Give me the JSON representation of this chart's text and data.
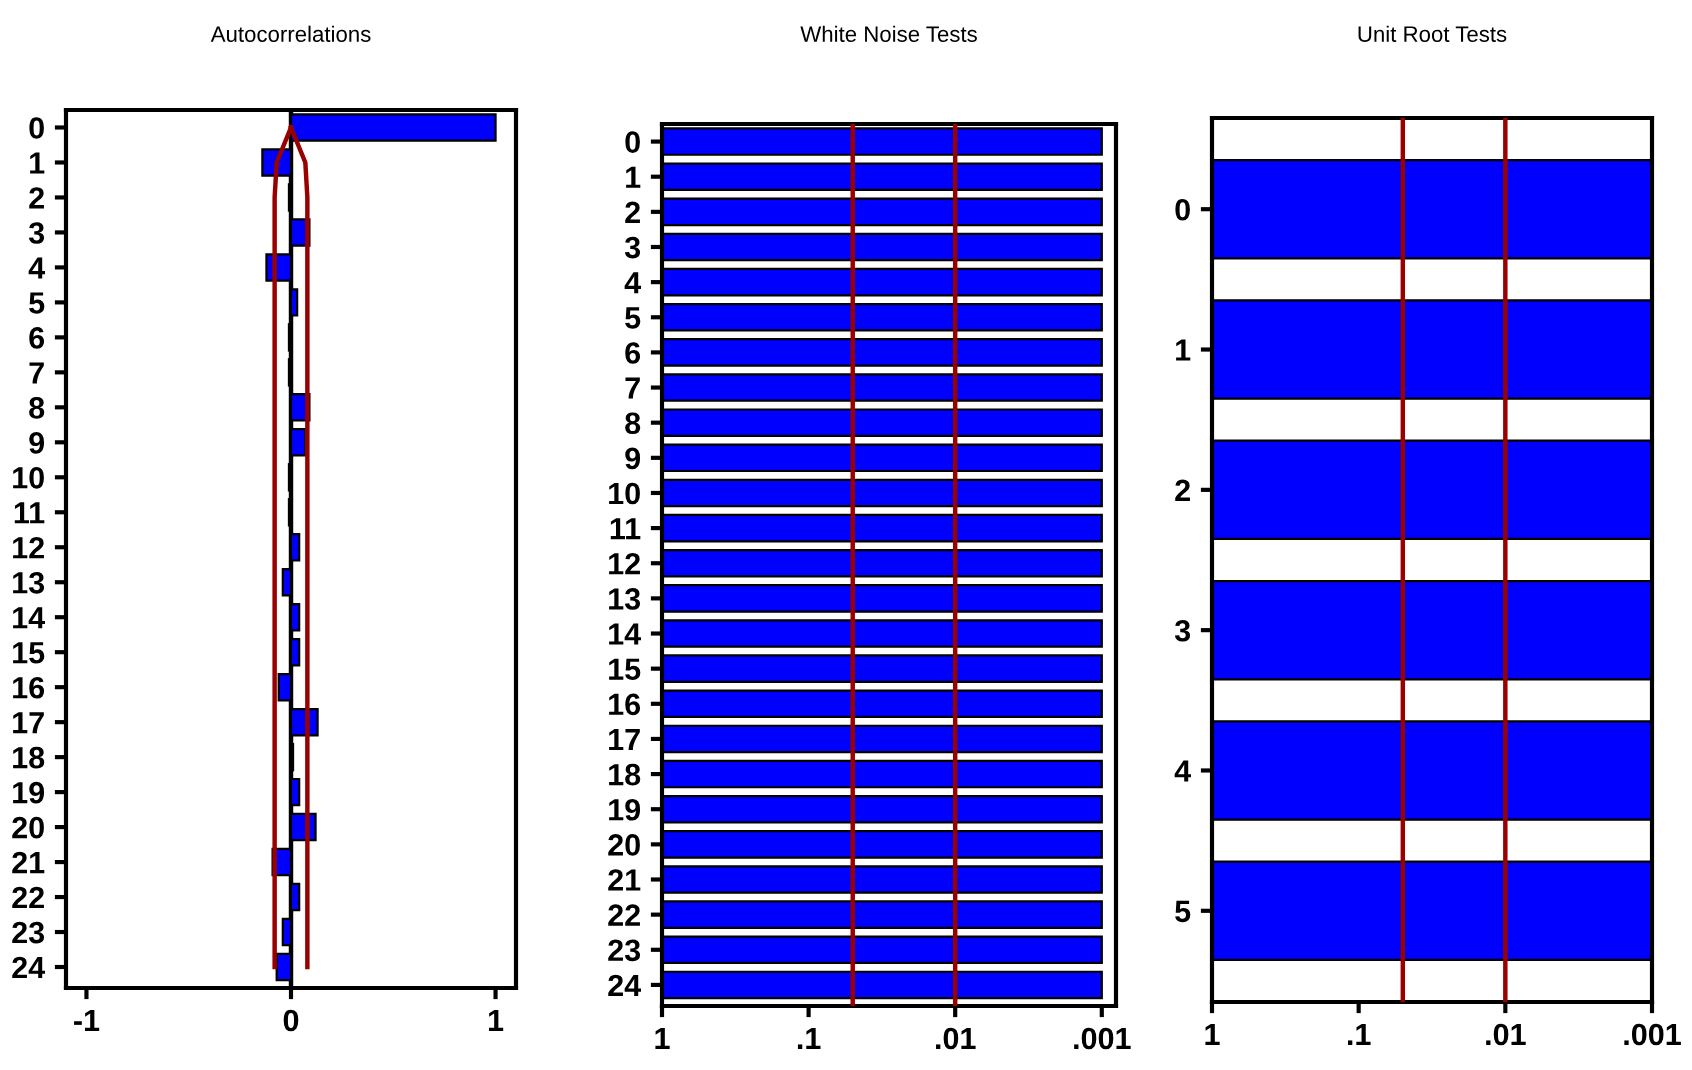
{
  "chart_data": [
    {
      "type": "bar",
      "title": "Autocorrelations",
      "orientation": "horizontal",
      "categories": [
        "0",
        "1",
        "2",
        "3",
        "4",
        "5",
        "6",
        "7",
        "8",
        "9",
        "10",
        "11",
        "12",
        "13",
        "14",
        "15",
        "16",
        "17",
        "18",
        "19",
        "20",
        "21",
        "22",
        "23",
        "24"
      ],
      "series": [
        {
          "type": "bar",
          "color": "#0000ff",
          "values": [
            1.0,
            -0.14,
            -0.01,
            0.09,
            -0.12,
            0.03,
            -0.01,
            -0.01,
            0.09,
            0.07,
            -0.01,
            -0.01,
            0.04,
            -0.04,
            0.04,
            0.04,
            -0.06,
            0.13,
            0.01,
            0.04,
            0.12,
            -0.09,
            0.04,
            -0.04,
            -0.07
          ]
        },
        {
          "type": "line",
          "color": "#990000",
          "values": [
            0,
            -0.07,
            -0.08,
            -0.08,
            -0.08,
            -0.08,
            -0.08,
            -0.08,
            -0.08,
            -0.08,
            -0.08,
            -0.08,
            -0.08,
            -0.08,
            -0.08,
            -0.08,
            -0.08,
            -0.08,
            -0.08,
            -0.08,
            -0.08,
            -0.08,
            -0.08,
            -0.08,
            -0.08
          ]
        },
        {
          "type": "line",
          "color": "#990000",
          "values": [
            0,
            0.07,
            0.08,
            0.08,
            0.08,
            0.08,
            0.08,
            0.08,
            0.08,
            0.08,
            0.08,
            0.08,
            0.08,
            0.08,
            0.08,
            0.08,
            0.08,
            0.08,
            0.08,
            0.08,
            0.08,
            0.08,
            0.08,
            0.08,
            0.08
          ]
        }
      ],
      "xlim": [
        -1.1,
        1.1
      ],
      "xticks": [
        -1,
        0,
        1
      ],
      "ref_lines": [
        {
          "axis": "x",
          "value": 0,
          "color": "#000000"
        }
      ],
      "grid": false,
      "legend": false
    },
    {
      "type": "bar",
      "title": "White Noise Tests",
      "orientation": "horizontal",
      "log": "x",
      "categories": [
        "0",
        "1",
        "2",
        "3",
        "4",
        "5",
        "6",
        "7",
        "8",
        "9",
        "10",
        "11",
        "12",
        "13",
        "14",
        "15",
        "16",
        "17",
        "18",
        "19",
        "20",
        "21",
        "22",
        "23",
        "24"
      ],
      "values": [
        -0.999,
        -0.999,
        -0.999,
        -0.999,
        -0.999,
        -0.999,
        -0.999,
        -0.999,
        -0.999,
        -0.999,
        -0.999,
        -0.999,
        -0.999,
        -0.999,
        -0.999,
        -0.999,
        -0.999,
        -0.999,
        -0.999,
        -0.999,
        -0.999,
        -0.999,
        -0.999,
        -0.999,
        -0.999
      ],
      "base": [
        1,
        1,
        1,
        1,
        1,
        1,
        1,
        1,
        1,
        1,
        1,
        1,
        1,
        1,
        1,
        1,
        1,
        1,
        1,
        1,
        1,
        1,
        1,
        1,
        1
      ],
      "color": "#0000ff",
      "xlim": [
        1,
        0.0008
      ],
      "xticks": [
        {
          "value": 1,
          "label": "1"
        },
        {
          "value": 0.1,
          "label": ".1"
        },
        {
          "value": 0.01,
          "label": ".01"
        },
        {
          "value": 0.001,
          "label": ".001"
        }
      ],
      "ref_lines": [
        {
          "axis": "x",
          "value": 0.05,
          "color": "#990000"
        },
        {
          "axis": "x",
          "value": 0.01,
          "color": "#990000"
        }
      ],
      "grid": false,
      "legend": false
    },
    {
      "type": "bar",
      "title": "Unit Root Tests",
      "orientation": "horizontal",
      "log": "x",
      "categories": [
        "0",
        "1",
        "2",
        "3",
        "4",
        "5"
      ],
      "values": [
        -0.999,
        -0.999,
        -0.999,
        -0.999,
        -0.999,
        -0.999
      ],
      "base": [
        1,
        1,
        1,
        1,
        1,
        1
      ],
      "color": "#0000ff",
      "xlim": [
        1,
        0.001
      ],
      "xticks": [
        {
          "value": 1,
          "label": "1"
        },
        {
          "value": 0.1,
          "label": ".1"
        },
        {
          "value": 0.01,
          "label": ".01"
        },
        {
          "value": 0.001,
          "label": ".001"
        }
      ],
      "ref_lines": [
        {
          "axis": "x",
          "value": 0.05,
          "color": "#990000"
        },
        {
          "axis": "x",
          "value": 0.01,
          "color": "#990000"
        }
      ],
      "grid": false,
      "legend": false
    }
  ]
}
